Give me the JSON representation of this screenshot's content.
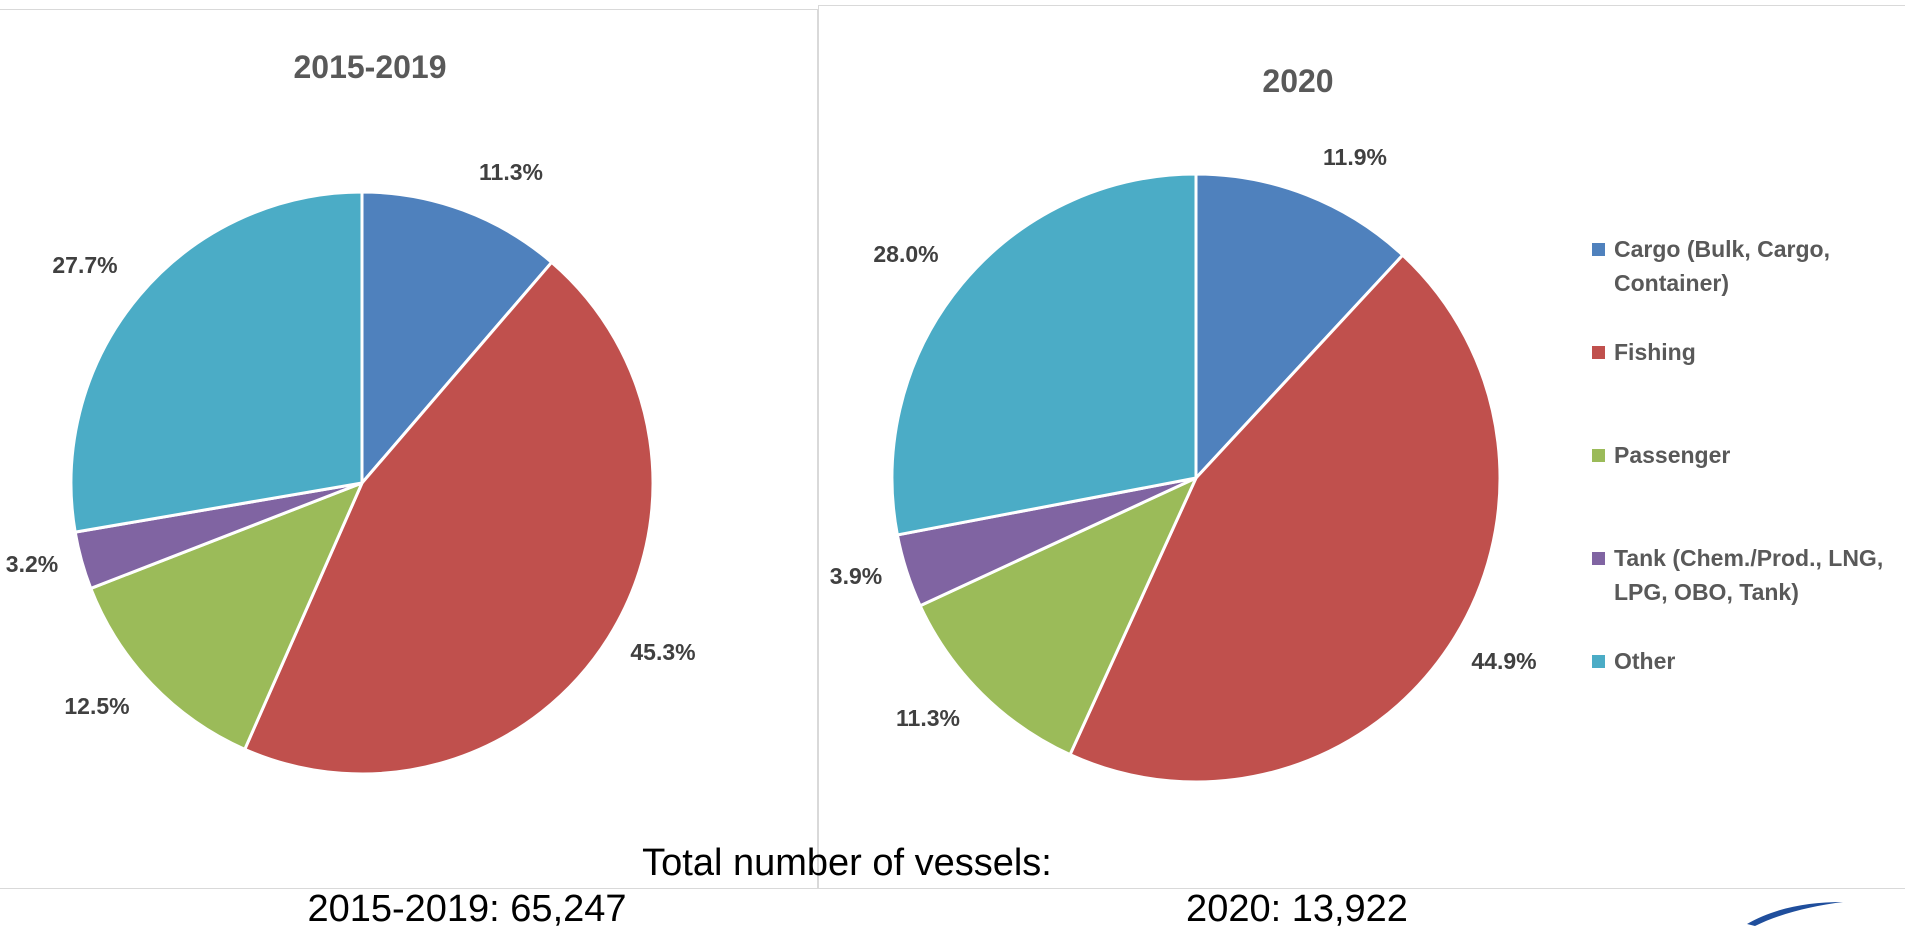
{
  "chart_data": [
    {
      "type": "pie",
      "title": "2015-2019",
      "categories": [
        "Cargo (Bulk, Cargo, Container)",
        "Fishing",
        "Passenger",
        "Tank (Chem./Prod., LNG, LPG, OBO, Tank)",
        "Other"
      ],
      "values": [
        11.3,
        45.3,
        12.5,
        3.2,
        27.7
      ],
      "labels": [
        "11.3%",
        "45.3%",
        "12.5%",
        "3.2%",
        "27.7%"
      ],
      "colors": [
        "#4f81bd",
        "#c0504d",
        "#9bbb59",
        "#8064a2",
        "#4bacc6"
      ]
    },
    {
      "type": "pie",
      "title": "2020",
      "categories": [
        "Cargo (Bulk, Cargo, Container)",
        "Fishing",
        "Passenger",
        "Tank (Chem./Prod., LNG, LPG, OBO, Tank)",
        "Other"
      ],
      "values": [
        11.9,
        44.9,
        11.3,
        3.9,
        28.0
      ],
      "labels": [
        "11.9%",
        "44.9%",
        "11.3%",
        "3.9%",
        "28.0%"
      ],
      "colors": [
        "#4f81bd",
        "#c0504d",
        "#9bbb59",
        "#8064a2",
        "#4bacc6"
      ],
      "legend_position": "right"
    }
  ],
  "legend": {
    "items": [
      {
        "label": "Cargo (Bulk, Cargo, Container)",
        "color": "#4f81bd"
      },
      {
        "label": "Fishing",
        "color": "#c0504d"
      },
      {
        "label": "Passenger",
        "color": "#9bbb59"
      },
      {
        "label": "Tank (Chem./Prod., LNG, LPG, OBO, Tank)",
        "color": "#8064a2"
      },
      {
        "label": "Other",
        "color": "#4bacc6"
      }
    ]
  },
  "totals": {
    "heading": "Total number of vessels:",
    "left": "2015-2019:  65,247",
    "right": "2020:  13,922"
  }
}
